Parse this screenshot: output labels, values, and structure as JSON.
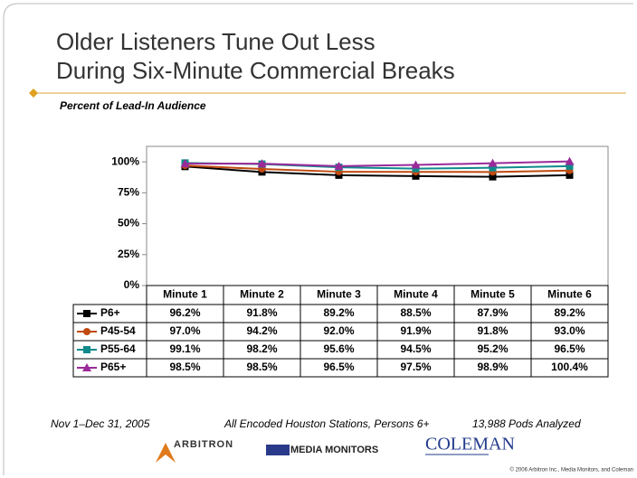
{
  "chart_data": {
    "type": "line",
    "title_lines": [
      "Older Listeners Tune Out Less",
      "During Six-Minute Commercial Breaks"
    ],
    "subtitle": "Percent of Lead-In Audience",
    "categories": [
      "Minute 1",
      "Minute 2",
      "Minute 3",
      "Minute 4",
      "Minute 5",
      "Minute 6"
    ],
    "series": [
      {
        "name": "P6+",
        "color": "#000000",
        "marker": "square",
        "values": [
          96.2,
          91.8,
          89.2,
          88.5,
          87.9,
          89.2
        ],
        "value_labels": [
          "96.2%",
          "91.8%",
          "89.2%",
          "88.5%",
          "87.9%",
          "89.2%"
        ]
      },
      {
        "name": "P45-54",
        "color": "#c04a10",
        "marker": "circle",
        "values": [
          97.0,
          94.2,
          92.0,
          91.9,
          91.8,
          93.0
        ],
        "value_labels": [
          "97.0%",
          "94.2%",
          "92.0%",
          "91.9%",
          "91.8%",
          "93.0%"
        ]
      },
      {
        "name": "P55-64",
        "color": "#108a8a",
        "marker": "square",
        "values": [
          99.1,
          98.2,
          95.6,
          94.5,
          95.2,
          96.5
        ],
        "value_labels": [
          "99.1%",
          "98.2%",
          "95.6%",
          "94.5%",
          "95.2%",
          "96.5%"
        ]
      },
      {
        "name": "P65+",
        "color": "#9a2a9a",
        "marker": "triangle",
        "values": [
          98.5,
          98.5,
          96.5,
          97.5,
          98.9,
          100.4
        ],
        "value_labels": [
          "98.5%",
          "98.5%",
          "96.5%",
          "97.5%",
          "98.9%",
          "100.4%"
        ]
      }
    ],
    "ylim": [
      0,
      112.5
    ],
    "yticks": [
      {
        "value": 0,
        "label": "0%"
      },
      {
        "value": 25,
        "label": "25%"
      },
      {
        "value": 50,
        "label": "50%"
      },
      {
        "value": 75,
        "label": "75%"
      },
      {
        "value": 100,
        "label": "100%"
      }
    ],
    "footer": [
      "Nov 1–Dec 31, 2005",
      "All Encoded Houston Stations, Persons 6+",
      "13,988 Pods Analyzed"
    ],
    "logos": [
      "ARBITRON",
      "MEDIA MONITORS",
      "COLEMAN"
    ],
    "copyright": "© 2006 Arbitron Inc., Media Monitors, and Coleman"
  }
}
